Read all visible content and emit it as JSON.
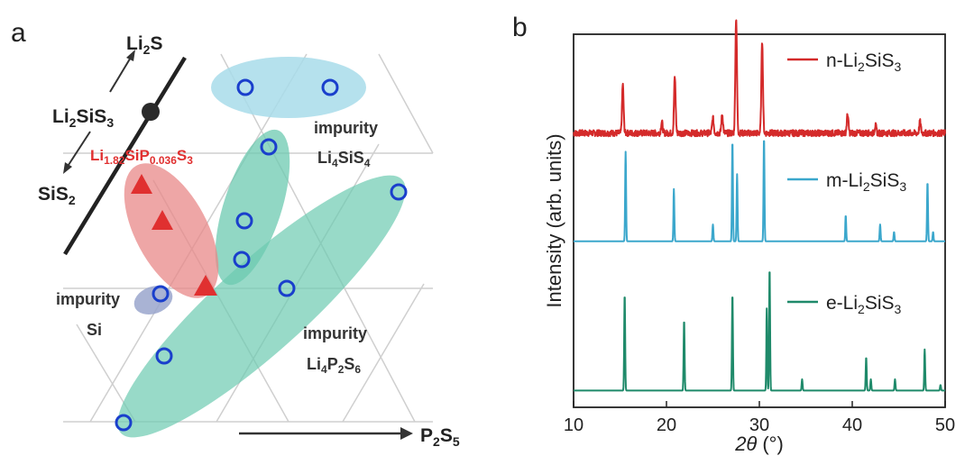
{
  "panel_a": {
    "label": "a",
    "compounds": {
      "li2s": {
        "main": "Li",
        "sub": "2",
        "tail": "S"
      },
      "li2sis3": {
        "p1": "Li",
        "s1": "2",
        "p2": "SiS",
        "s2": "3"
      },
      "doped": {
        "p1": "Li",
        "s1": "1.82",
        "p2": "SiP",
        "s2": "0.036",
        "p3": "S",
        "s3": "3"
      },
      "sis2": {
        "p1": "SiS",
        "s1": "2"
      },
      "p2s5": {
        "p1": "P",
        "s1": "2",
        "p2": "S",
        "s2": "5"
      }
    },
    "regions": {
      "li4sis4": {
        "word": "impurity",
        "p1": "Li",
        "s1": "4",
        "p2": "SiS",
        "s2": "4"
      },
      "si": {
        "word": "impurity",
        "name": "Si"
      },
      "li4p2s6": {
        "word": "impurity",
        "p1": "Li",
        "s1": "4",
        "p2": "P",
        "s2": "2",
        "p3": "S",
        "s3": "6"
      }
    },
    "colors": {
      "triangle": "#e03030",
      "circle": "#1a3fcc",
      "pink_region": "#e88888",
      "teal_region": "#6ccab0",
      "light_blue_region": "#a8dcea",
      "purple_region": "#9aa6cc",
      "doped_text": "#e03030"
    }
  },
  "panel_b": {
    "label": "b",
    "chart_data": {
      "type": "line",
      "xlabel_theta": "2θ",
      "xlabel_unit": "(°)",
      "ylabel": "Intensity (arb. units)",
      "xlim": [
        10,
        50
      ],
      "xticks": [
        "10",
        "20",
        "30",
        "40",
        "50"
      ],
      "series": [
        {
          "name_p1": "n-Li",
          "name_s1": "2",
          "name_p2": "SiS",
          "name_s2": "3",
          "color": "#d42a2a",
          "baseline": 0.78,
          "noise": 0.012,
          "peaks": [
            [
              15.3,
              0.13
            ],
            [
              19.5,
              0.03
            ],
            [
              20.9,
              0.15
            ],
            [
              25.0,
              0.04
            ],
            [
              26.0,
              0.05
            ],
            [
              27.5,
              0.31
            ],
            [
              30.3,
              0.25
            ],
            [
              39.5,
              0.05
            ],
            [
              42.5,
              0.02
            ],
            [
              47.3,
              0.03
            ]
          ]
        },
        {
          "name_p1": "m-Li",
          "name_s1": "2",
          "name_p2": "SiS",
          "name_s2": "3",
          "color": "#3ba7cc",
          "baseline": 0.445,
          "noise": 0.0,
          "peaks": [
            [
              15.6,
              0.24
            ],
            [
              20.8,
              0.14
            ],
            [
              25.0,
              0.045
            ],
            [
              27.1,
              0.27
            ],
            [
              27.6,
              0.18
            ],
            [
              30.5,
              0.28
            ],
            [
              39.3,
              0.07
            ],
            [
              43.0,
              0.045
            ],
            [
              44.5,
              0.025
            ],
            [
              48.1,
              0.16
            ],
            [
              48.7,
              0.025
            ]
          ]
        },
        {
          "name_p1": "e-Li",
          "name_s1": "2",
          "name_p2": "SiS",
          "name_s2": "3",
          "color": "#1f8a6a",
          "baseline": 0.045,
          "noise": 0.0,
          "peaks": [
            [
              15.5,
              0.26
            ],
            [
              21.9,
              0.19
            ],
            [
              27.1,
              0.26
            ],
            [
              30.8,
              0.22
            ],
            [
              31.1,
              0.33
            ],
            [
              34.6,
              0.03
            ],
            [
              41.5,
              0.09
            ],
            [
              42.0,
              0.03
            ],
            [
              44.6,
              0.03
            ],
            [
              47.8,
              0.11
            ],
            [
              49.5,
              0.015
            ]
          ]
        }
      ]
    }
  }
}
